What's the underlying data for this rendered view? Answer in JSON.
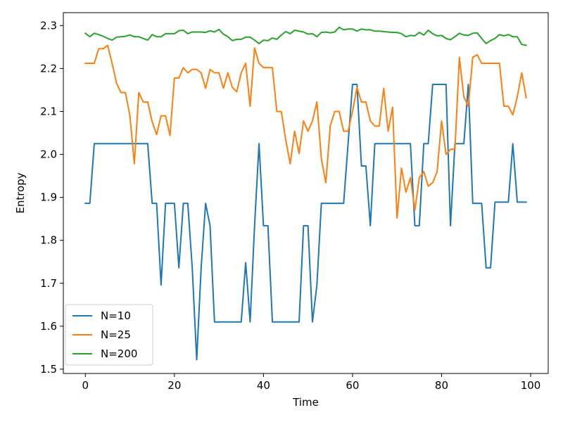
{
  "chart_data": {
    "type": "line",
    "title": "",
    "xlabel": "Time",
    "ylabel": "Entropy",
    "xlim": [
      -4.95,
      103.95
    ],
    "ylim": [
      1.49,
      2.33
    ],
    "xticks": [
      0,
      20,
      40,
      60,
      80,
      100
    ],
    "yticks": [
      1.5,
      1.6,
      1.7,
      1.8,
      1.9,
      2.0,
      2.1,
      2.2,
      2.3
    ],
    "grid": false,
    "legend_position": "lower-left",
    "x": [
      0,
      1,
      2,
      3,
      4,
      5,
      6,
      7,
      8,
      9,
      10,
      11,
      12,
      13,
      14,
      15,
      16,
      17,
      18,
      19,
      20,
      21,
      22,
      23,
      24,
      25,
      26,
      27,
      28,
      29,
      30,
      31,
      32,
      33,
      34,
      35,
      36,
      37,
      38,
      39,
      40,
      41,
      42,
      43,
      44,
      45,
      46,
      47,
      48,
      49,
      50,
      51,
      52,
      53,
      54,
      55,
      56,
      57,
      58,
      59,
      60,
      61,
      62,
      63,
      64,
      65,
      66,
      67,
      68,
      69,
      70,
      71,
      72,
      73,
      74,
      75,
      76,
      77,
      78,
      79,
      80,
      81,
      82,
      83,
      84,
      85,
      86,
      87,
      88,
      89,
      90,
      91,
      92,
      93,
      94,
      95,
      96,
      97,
      98,
      99
    ],
    "series": [
      {
        "name": "N=10",
        "color": "#1f77b4",
        "values": [
          1.886,
          1.886,
          2.025,
          2.025,
          2.025,
          2.025,
          2.025,
          2.025,
          2.025,
          2.025,
          2.025,
          2.025,
          2.025,
          2.025,
          2.025,
          1.886,
          1.886,
          1.696,
          1.886,
          1.886,
          1.886,
          1.736,
          1.886,
          1.886,
          1.736,
          1.522,
          1.736,
          1.886,
          1.834,
          1.61,
          1.61,
          1.61,
          1.61,
          1.61,
          1.61,
          1.61,
          1.748,
          1.61,
          1.834,
          2.025,
          1.834,
          1.834,
          1.61,
          1.61,
          1.61,
          1.61,
          1.61,
          1.61,
          1.61,
          1.834,
          1.834,
          1.61,
          1.696,
          1.886,
          1.886,
          1.886,
          1.886,
          1.886,
          1.886,
          2.025,
          2.163,
          2.163,
          1.973,
          1.973,
          1.834,
          2.025,
          2.025,
          2.025,
          2.025,
          2.025,
          2.025,
          2.025,
          2.025,
          2.025,
          1.834,
          1.834,
          2.025,
          2.025,
          2.163,
          2.163,
          2.163,
          2.163,
          1.834,
          2.025,
          2.025,
          2.025,
          2.163,
          1.886,
          1.886,
          1.886,
          1.736,
          1.736,
          1.889,
          1.889,
          1.889,
          1.889,
          2.025,
          1.889,
          1.889,
          1.889
        ]
      },
      {
        "name": "N=25",
        "color": "#ff7f0e",
        "values": [
          2.212,
          2.212,
          2.212,
          2.246,
          2.246,
          2.254,
          2.212,
          2.166,
          2.144,
          2.144,
          2.09,
          1.978,
          2.144,
          2.122,
          2.122,
          2.076,
          2.046,
          2.09,
          2.09,
          2.044,
          2.178,
          2.178,
          2.202,
          2.19,
          2.198,
          2.198,
          2.19,
          2.154,
          2.198,
          2.19,
          2.19,
          2.154,
          2.19,
          2.156,
          2.146,
          2.19,
          2.212,
          2.112,
          2.248,
          2.212,
          2.202,
          2.202,
          2.202,
          2.1,
          2.1,
          2.034,
          1.978,
          2.054,
          2.002,
          2.078,
          2.054,
          2.078,
          2.122,
          1.99,
          1.934,
          2.066,
          2.1,
          2.1,
          2.054,
          2.054,
          2.1,
          2.156,
          2.122,
          2.122,
          2.078,
          2.066,
          2.066,
          2.154,
          2.054,
          2.11,
          1.852,
          1.968,
          1.912,
          1.946,
          1.87,
          1.946,
          1.96,
          1.926,
          1.934,
          1.96,
          2.078,
          2.0,
          2.012,
          2.012,
          2.226,
          2.134,
          2.112,
          2.226,
          2.232,
          2.212,
          2.212,
          2.212,
          2.212,
          2.212,
          2.112,
          2.112,
          2.092,
          2.134,
          2.19,
          2.132
        ]
      },
      {
        "name": "N=200",
        "color": "#2ca02c",
        "values": [
          2.282,
          2.274,
          2.282,
          2.279,
          2.275,
          2.27,
          2.266,
          2.273,
          2.274,
          2.275,
          2.278,
          2.274,
          2.274,
          2.27,
          2.266,
          2.279,
          2.274,
          2.274,
          2.281,
          2.281,
          2.281,
          2.288,
          2.289,
          2.281,
          2.285,
          2.285,
          2.285,
          2.284,
          2.288,
          2.285,
          2.291,
          2.28,
          2.274,
          2.265,
          2.268,
          2.268,
          2.273,
          2.273,
          2.266,
          2.258,
          2.266,
          2.265,
          2.271,
          2.268,
          2.278,
          2.286,
          2.281,
          2.289,
          2.287,
          2.285,
          2.28,
          2.281,
          2.274,
          2.284,
          2.285,
          2.283,
          2.285,
          2.296,
          2.29,
          2.292,
          2.292,
          2.287,
          2.292,
          2.29,
          2.29,
          2.287,
          2.287,
          2.286,
          2.285,
          2.284,
          2.284,
          2.281,
          2.274,
          2.277,
          2.276,
          2.284,
          2.278,
          2.289,
          2.281,
          2.276,
          2.277,
          2.27,
          2.267,
          2.274,
          2.282,
          2.278,
          2.277,
          2.282,
          2.283,
          2.27,
          2.258,
          2.265,
          2.27,
          2.279,
          2.276,
          2.279,
          2.274,
          2.274,
          2.256,
          2.254
        ]
      }
    ]
  }
}
